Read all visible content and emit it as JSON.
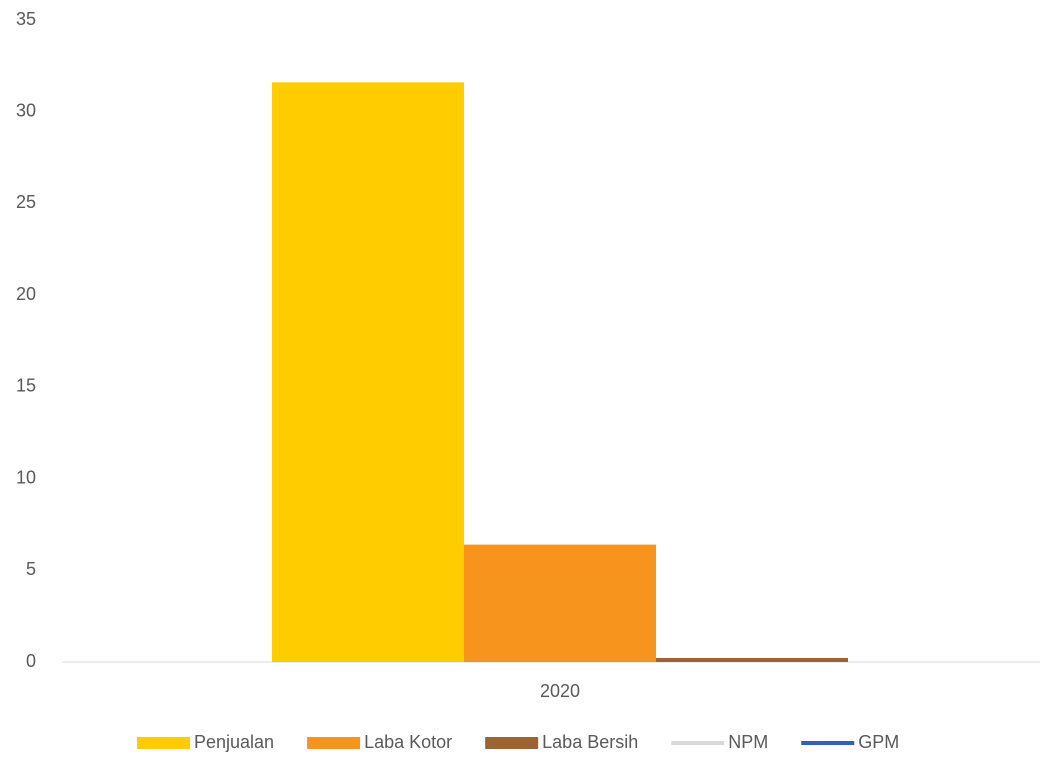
{
  "chart_data": {
    "type": "bar",
    "categories": [
      "2020"
    ],
    "series": [
      {
        "name": "Penjualan",
        "color": "#ffcc00",
        "values": [
          31.6
        ]
      },
      {
        "name": "Laba Kotor",
        "color": "#f7941d",
        "values": [
          6.4
        ]
      },
      {
        "name": "Laba Bersih",
        "color": "#9c6334",
        "values": [
          0.22
        ]
      },
      {
        "name": "NPM",
        "color": "#d9d9d9",
        "type": "line",
        "values": [
          null
        ]
      },
      {
        "name": "GPM",
        "color": "#2f5fbf",
        "type": "line",
        "values": [
          null
        ]
      }
    ],
    "ylim": [
      0,
      35
    ],
    "yticks": [
      0,
      5,
      10,
      15,
      20,
      25,
      30,
      35
    ],
    "grid": false,
    "legend": "bottom"
  }
}
